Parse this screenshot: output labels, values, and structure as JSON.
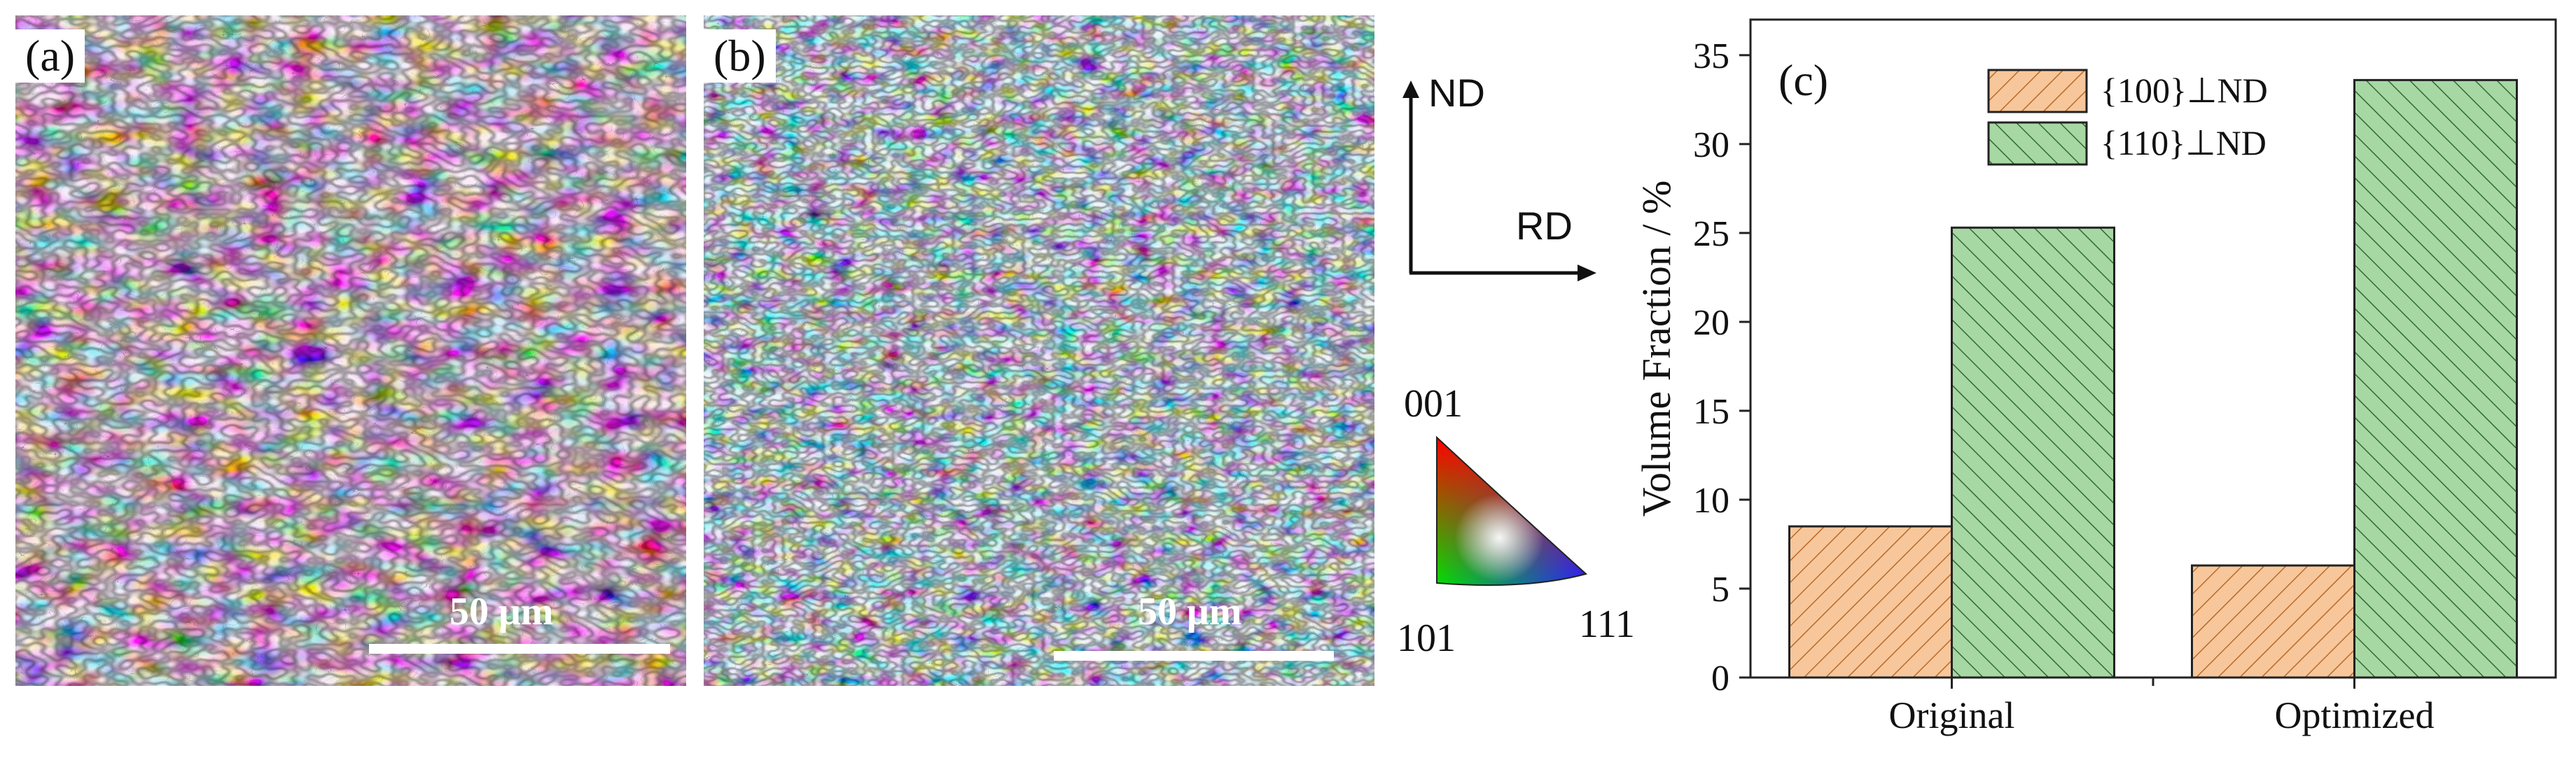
{
  "panels": {
    "a": {
      "label": "(a)",
      "scale_bar": "50 μm"
    },
    "b": {
      "label": "(b)",
      "scale_bar": "50 μm"
    }
  },
  "axes_legend": {
    "nd": "ND",
    "rd": "RD"
  },
  "ipf_key": {
    "top": "001",
    "bottom_left": "101",
    "bottom_right": "111"
  },
  "colors": {
    "orange_fill": "#f7c79b",
    "orange_edge": "#b86a2b",
    "green_fill": "#a7d8a3",
    "green_edge": "#2f6b35"
  },
  "chart_data": {
    "type": "bar",
    "panel_label": "(c)",
    "categories": [
      "Original",
      "Optimized"
    ],
    "series": [
      {
        "name": "{100}⊥ND",
        "values": [
          8.5,
          6.3
        ],
        "color": "#f7c79b",
        "hatch": "#b86a2b"
      },
      {
        "name": "{110}⊥ND",
        "values": [
          25.3,
          33.6
        ],
        "color": "#a7d8a3",
        "hatch": "#2f6b35"
      }
    ],
    "ylabel": "Volume Fraction / %",
    "xlabel": "",
    "ylim": [
      0,
      37
    ],
    "yticks": [
      "0",
      "5",
      "10",
      "15",
      "20",
      "25",
      "30",
      "35"
    ],
    "legend_position": "top-center",
    "grid": false
  }
}
